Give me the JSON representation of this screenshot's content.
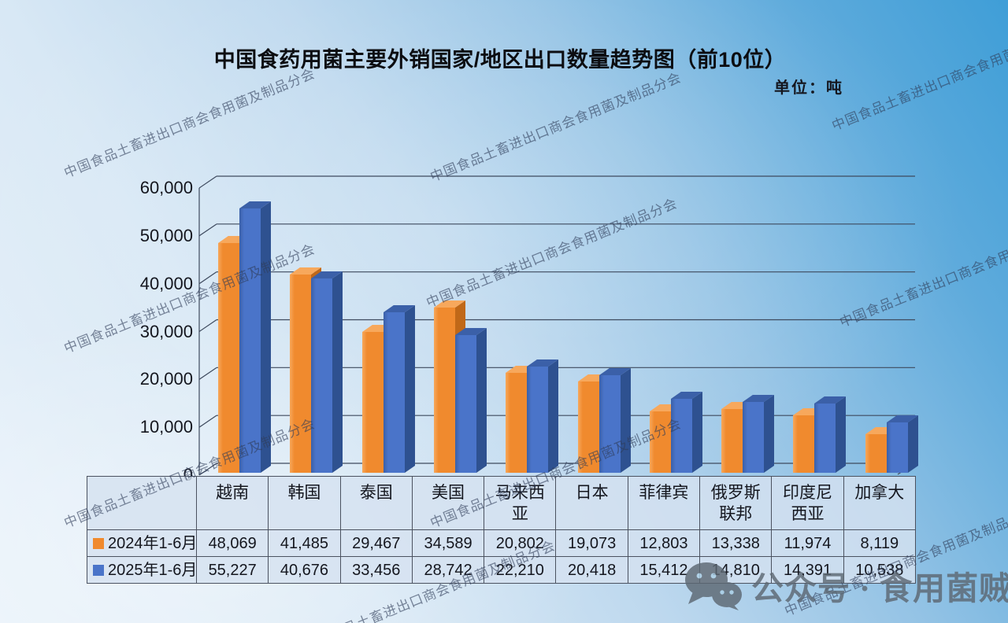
{
  "title": "中国食药用菌主要外销国家/地区出口数量趋势图（前10位）",
  "unit_label": "单位：吨",
  "watermark_text": "中国食品土畜进出口商会食用菌及制品分会",
  "brand": {
    "icon": "wechat-icon",
    "text": "公众号 · 食用菌贼船"
  },
  "colors": {
    "orange_front": "#F08A2E",
    "orange_top": "#F7A85C",
    "orange_side": "#C06818",
    "blue_front": "#4A74C9",
    "blue_top": "#3B60A8",
    "blue_side": "#2E5190",
    "grid_line": "#3e4a5e",
    "table_border": "#4b5260",
    "text": "#14161e"
  },
  "chart_data": {
    "type": "bar",
    "title": "中国食药用菌主要外销国家/地区出口数量趋势图（前10位）",
    "ylabel": "单位：吨",
    "categories": [
      "越南",
      "韩国",
      "泰国",
      "美国",
      "马来西亚",
      "日本",
      "菲律宾",
      "俄罗斯联邦",
      "印度尼西亚",
      "加拿大"
    ],
    "series": [
      {
        "name": "2024年1-6月",
        "color": "#F08A2E",
        "values": [
          48069,
          41485,
          29467,
          34589,
          20802,
          19073,
          12803,
          13338,
          11974,
          8119
        ]
      },
      {
        "name": "2025年1-6月",
        "color": "#4A74C9",
        "values": [
          55227,
          40676,
          33456,
          28742,
          22210,
          20418,
          15412,
          14810,
          14391,
          10538
        ]
      }
    ],
    "ylim": [
      0,
      60000
    ],
    "ytick_step": 10000,
    "ytick_labels": [
      "0",
      "10,000",
      "20,000",
      "30,000",
      "40,000",
      "50,000",
      "60,000"
    ],
    "grid": true,
    "style": "3d-column",
    "legend_position": "table-rows"
  },
  "table": {
    "header": [
      "越南",
      "韩国",
      "泰国",
      "美国",
      "马来西亚",
      "日本",
      "菲律宾",
      "俄罗斯联邦",
      "印度尼西亚",
      "加拿大"
    ],
    "rows": [
      {
        "label": "2024年1-6月",
        "swatch_color": "#F08A2E",
        "cells": [
          "48,069",
          "41,485",
          "29,467",
          "34,589",
          "20,802",
          "19,073",
          "12,803",
          "13,338",
          "11,974",
          "8,119"
        ]
      },
      {
        "label": "2025年1-6月",
        "swatch_color": "#4A74C9",
        "cells": [
          "55,227",
          "40,676",
          "33,456",
          "28,742",
          "22,210",
          "20,418",
          "15,412",
          "14,810",
          "14,391",
          "10,538"
        ]
      }
    ]
  }
}
